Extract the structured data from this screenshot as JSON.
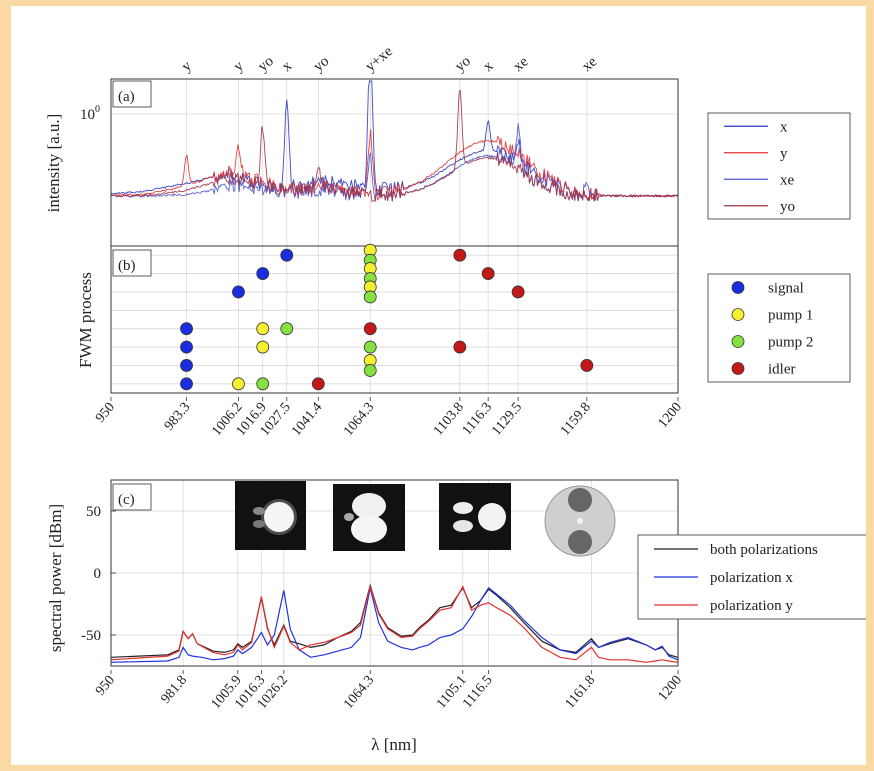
{
  "chart_data": [
    {
      "panel": "(a)",
      "type": "line",
      "ylabel": "intensity [a.u.]",
      "yscale": "log",
      "ytick_labels": [
        "10^0"
      ],
      "xlim": [
        950,
        1200
      ],
      "top_labels": [
        {
          "text": "y",
          "x": 983.3
        },
        {
          "text": "y",
          "x": 1006.2
        },
        {
          "text": "yo",
          "x": 1016.9
        },
        {
          "text": "x",
          "x": 1027.5
        },
        {
          "text": "yo",
          "x": 1041.4
        },
        {
          "text": "y+xe",
          "x": 1064.3
        },
        {
          "text": "yo",
          "x": 1103.8
        },
        {
          "text": "x",
          "x": 1116.3
        },
        {
          "text": "xe",
          "x": 1129.5
        },
        {
          "text": "xe",
          "x": 1159.8
        }
      ],
      "legend": {
        "placement": "right",
        "entries": [
          {
            "name": "x",
            "color": "#2a35c0"
          },
          {
            "name": "y",
            "color": "#e03030"
          },
          {
            "name": "xe",
            "color": "#4a55cc"
          },
          {
            "name": "yo",
            "color": "#a03040"
          }
        ]
      },
      "grid": true
    },
    {
      "panel": "(b)",
      "type": "scatter",
      "ylabel": "FWM process",
      "xlim": [
        950,
        1200
      ],
      "ylim": [
        0.5,
        8.5
      ],
      "xtick_labels": [
        "950",
        "983.3",
        "1006.2",
        "1016.9",
        "1027.5",
        "1041.4",
        "1064.3",
        "1103.8",
        "1116.3",
        "1129.5",
        "1159.8",
        "1200"
      ],
      "xtick_values": [
        950,
        983.3,
        1006.2,
        1016.9,
        1027.5,
        1041.4,
        1064.3,
        1103.8,
        1116.3,
        1129.5,
        1159.8,
        1200
      ],
      "legend": {
        "placement": "right",
        "entries": [
          {
            "name": "signal",
            "color": "#1a2ee0"
          },
          {
            "name": "pump 1",
            "color": "#f4f030"
          },
          {
            "name": "pump 2",
            "color": "#86e040"
          },
          {
            "name": "idler",
            "color": "#c41818"
          }
        ]
      },
      "rows": [
        {
          "row": 8,
          "signal": 1027.5,
          "pump1": 1064.3,
          "pump2": 1064.3,
          "idler": 1103.8
        },
        {
          "row": 7,
          "signal": 1016.9,
          "pump1": 1064.3,
          "pump2": 1064.3,
          "idler": 1116.3
        },
        {
          "row": 6,
          "signal": 1006.2,
          "pump1": 1064.3,
          "pump2": 1064.3,
          "idler": 1129.5
        },
        {
          "row": 4,
          "signal": 983.3,
          "pump1": 1016.9,
          "pump2": 1027.5,
          "idler": 1064.3
        },
        {
          "row": 3,
          "signal": 983.3,
          "pump1": 1016.9,
          "pump2": 1064.3,
          "idler": 1103.8
        },
        {
          "row": 2,
          "signal": 983.3,
          "pump1": 1064.3,
          "pump2": 1064.3,
          "idler": 1159.8
        },
        {
          "row": 1,
          "signal": 983.3,
          "pump1": 1006.2,
          "pump2": 1016.9,
          "idler": 1041.4
        }
      ],
      "grid": true
    },
    {
      "panel": "(c)",
      "type": "line",
      "xlabel": "λ [nm]",
      "ylabel": "spectral power [dBm]",
      "xlim": [
        950,
        1200
      ],
      "ylim": [
        -75,
        75
      ],
      "ytick_labels": [
        "50",
        "0",
        "-50"
      ],
      "ytick_values": [
        50,
        0,
        -50
      ],
      "xtick_labels": [
        "950",
        "981.8",
        "1005.9",
        "1016.3",
        "1026.2",
        "1064.3",
        "1105.1",
        "1116.5",
        "1161.8",
        "1200"
      ],
      "xtick_values": [
        950,
        981.8,
        1005.9,
        1016.3,
        1026.2,
        1064.3,
        1105.1,
        1116.5,
        1161.8,
        1200
      ],
      "legend": {
        "placement": "right",
        "entries": [
          {
            "name": "both polarizations",
            "color": "#222222"
          },
          {
            "name": "polarization x",
            "color": "#2233dd"
          },
          {
            "name": "polarization y",
            "color": "#e03030"
          }
        ]
      },
      "series": [
        {
          "name": "both polarizations",
          "color": "#222222",
          "x": [
            950,
            975,
            980,
            981.8,
            984,
            986,
            988,
            995,
            1000,
            1004,
            1005.9,
            1008,
            1012,
            1016.3,
            1019,
            1022,
            1026.2,
            1029,
            1033,
            1038,
            1044,
            1050,
            1056,
            1060,
            1064.3,
            1068,
            1072,
            1078,
            1083,
            1086,
            1090,
            1095,
            1100,
            1105.1,
            1109,
            1113,
            1116.5,
            1120,
            1126,
            1132,
            1140,
            1148,
            1155,
            1161.8,
            1165,
            1170,
            1178,
            1186,
            1190,
            1193,
            1196,
            1200
          ],
          "y": [
            -68,
            -66,
            -62,
            -47,
            -53,
            -49,
            -57,
            -63,
            -64,
            -62,
            -57,
            -60,
            -55,
            -20,
            -45,
            -58,
            -42,
            -55,
            -57,
            -60,
            -58,
            -52,
            -47,
            -40,
            -10,
            -32,
            -44,
            -51,
            -50,
            -44,
            -38,
            -28,
            -26,
            -12,
            -28,
            -22,
            -13,
            -18,
            -28,
            -40,
            -55,
            -62,
            -64,
            -53,
            -60,
            -57,
            -53,
            -58,
            -62,
            -60,
            -66,
            -68
          ]
        },
        {
          "name": "polarization x",
          "color": "#2233dd",
          "x": [
            950,
            975,
            980,
            981.8,
            984,
            986,
            990,
            995,
            1000,
            1004,
            1005.9,
            1008,
            1012,
            1016.3,
            1019,
            1022,
            1026.2,
            1029,
            1033,
            1038,
            1044,
            1050,
            1056,
            1060,
            1064.3,
            1068,
            1072,
            1078,
            1083,
            1086,
            1090,
            1095,
            1100,
            1105.1,
            1109,
            1113,
            1116.5,
            1120,
            1126,
            1132,
            1140,
            1148,
            1155,
            1161.8,
            1165,
            1170,
            1178,
            1186,
            1190,
            1193,
            1196,
            1200
          ],
          "y": [
            -72,
            -71,
            -68,
            -60,
            -66,
            -67,
            -68,
            -70,
            -69,
            -67,
            -62,
            -65,
            -60,
            -48,
            -58,
            -50,
            -14,
            -45,
            -62,
            -68,
            -66,
            -63,
            -60,
            -52,
            -12,
            -40,
            -55,
            -60,
            -62,
            -60,
            -58,
            -52,
            -50,
            -45,
            -35,
            -22,
            -12,
            -17,
            -26,
            -38,
            -52,
            -62,
            -65,
            -55,
            -60,
            -56,
            -52,
            -58,
            -62,
            -59,
            -67,
            -70
          ]
        },
        {
          "name": "polarization y",
          "color": "#e03030",
          "x": [
            950,
            975,
            980,
            981.8,
            984,
            986,
            988,
            995,
            1000,
            1004,
            1005.9,
            1008,
            1012,
            1016.3,
            1019,
            1022,
            1026.2,
            1029,
            1033,
            1038,
            1044,
            1050,
            1056,
            1060,
            1064.3,
            1068,
            1072,
            1078,
            1083,
            1086,
            1090,
            1095,
            1100,
            1105.1,
            1109,
            1113,
            1116.5,
            1120,
            1126,
            1132,
            1140,
            1148,
            1155,
            1161.8,
            1165,
            1170,
            1178,
            1186,
            1190,
            1193,
            1196,
            1200
          ],
          "y": [
            -70,
            -67,
            -63,
            -47,
            -53,
            -49,
            -57,
            -64,
            -66,
            -64,
            -58,
            -62,
            -56,
            -19,
            -44,
            -60,
            -43,
            -56,
            -62,
            -58,
            -56,
            -52,
            -48,
            -42,
            -11,
            -33,
            -45,
            -52,
            -51,
            -45,
            -39,
            -30,
            -28,
            -11,
            -30,
            -26,
            -24,
            -28,
            -34,
            -44,
            -60,
            -68,
            -70,
            -60,
            -68,
            -70,
            -70,
            -72,
            -71,
            -70,
            -71,
            -72
          ]
        }
      ],
      "insets": [
        "mode-image-1",
        "mode-image-2",
        "mode-image-3",
        "fiber-cross-section"
      ],
      "grid": true
    }
  ]
}
